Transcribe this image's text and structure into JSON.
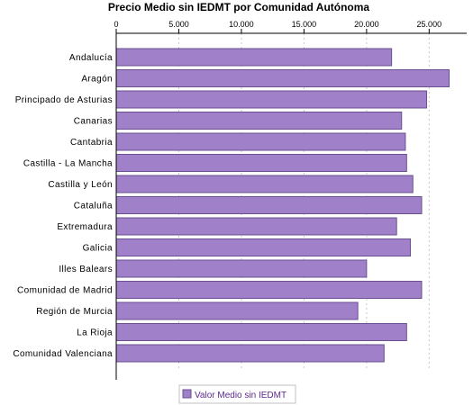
{
  "chart_data": {
    "type": "bar",
    "orientation": "horizontal",
    "title": "Precio Medio sin IEDMT por Comunidad Autónoma",
    "xlim": [
      0,
      28000
    ],
    "x_ticks": [
      0,
      5000,
      10000,
      15000,
      20000,
      25000
    ],
    "x_tick_labels": [
      "0",
      "5.000",
      "10.000",
      "15.000",
      "20.000",
      "25.000"
    ],
    "x_axis_position": "top",
    "grid": true,
    "categories": [
      "Andalucía",
      "Aragón",
      "Principado de Asturias",
      "Canarias",
      "Cantabria",
      "Castilla - La Mancha",
      "Castilla y León",
      "Cataluña",
      "Extremadura",
      "Galicia",
      "Illes Balears",
      "Comunidad de Madrid",
      "Región de Murcia",
      "La Rioja",
      "Comunidad Valenciana"
    ],
    "series": [
      {
        "name": "Valor Medio sin IEDMT",
        "color": "#a080c8",
        "values": [
          22000,
          26600,
          24800,
          22800,
          23100,
          23200,
          23700,
          24400,
          22400,
          23500,
          20000,
          24400,
          19300,
          23200,
          21400
        ]
      }
    ],
    "legend": {
      "position": "bottom-center"
    }
  }
}
